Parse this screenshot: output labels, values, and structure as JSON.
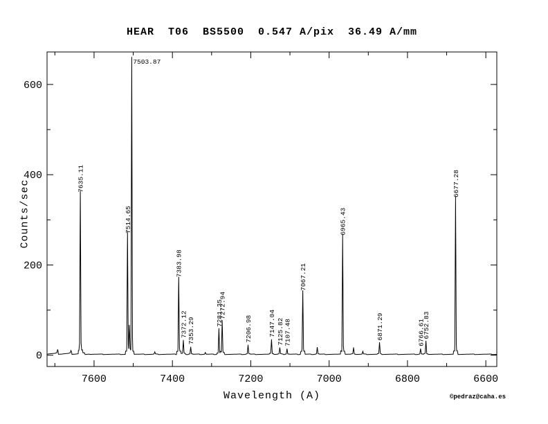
{
  "title": "HEAR  T06  BS5500  0.547 A/pix  36.49 A/mm",
  "credit": "©pedraz@caha.es",
  "chart_data": {
    "type": "line",
    "title": "HEAR  T06  BS5500  0.547 A/pix  36.49 A/mm",
    "xlabel": "Wavelength (A)",
    "ylabel": "Counts/sec",
    "xlim": [
      7720,
      6572
    ],
    "ylim": [
      -25,
      672
    ],
    "x_ticks_major": [
      7600,
      7400,
      7200,
      7000,
      6800,
      6600
    ],
    "x_ticks_minor": [
      7700,
      7500,
      7300,
      7100,
      6900,
      6700
    ],
    "y_ticks_major": [
      0,
      200,
      400,
      600
    ],
    "y_ticks_minor": [
      100,
      300,
      500
    ],
    "grid": false,
    "line_color": "#000000",
    "background": "#ffffff",
    "baseline_counts": 1.5,
    "labeled_peaks": [
      {
        "label": "7635.11",
        "wavelength": 7635.11,
        "counts": 353
      },
      {
        "label": "7514.65",
        "wavelength": 7514.65,
        "counts": 262
      },
      {
        "label": "7503.87",
        "wavelength": 7503.87,
        "counts": 652
      },
      {
        "label": "7383.98",
        "wavelength": 7383.98,
        "counts": 165
      },
      {
        "label": "7372.12",
        "wavelength": 7372.12,
        "counts": 30
      },
      {
        "label": "7353.29",
        "wavelength": 7353.29,
        "counts": 16
      },
      {
        "label": "7281.35",
        "wavelength": 7281.35,
        "counts": 55
      },
      {
        "label": "7272.94",
        "wavelength": 7272.94,
        "counts": 72
      },
      {
        "label": "7206.98",
        "wavelength": 7206.98,
        "counts": 20
      },
      {
        "label": "7147.04",
        "wavelength": 7147.04,
        "counts": 32
      },
      {
        "label": "7125.82",
        "wavelength": 7125.82,
        "counts": 14
      },
      {
        "label": "7107.48",
        "wavelength": 7107.48,
        "counts": 12
      },
      {
        "label": "7067.21",
        "wavelength": 7067.21,
        "counts": 135
      },
      {
        "label": "6965.43",
        "wavelength": 6965.43,
        "counts": 258
      },
      {
        "label": "6871.29",
        "wavelength": 6871.29,
        "counts": 25
      },
      {
        "label": "6766.61",
        "wavelength": 6766.61,
        "counts": 12
      },
      {
        "label": "6752.83",
        "wavelength": 6752.83,
        "counts": 28
      },
      {
        "label": "6677.28",
        "wavelength": 6677.28,
        "counts": 342
      }
    ],
    "unlabeled_peaks": [
      {
        "wavelength": 7693.0,
        "counts": 7
      },
      {
        "wavelength": 7659.0,
        "counts": 5
      },
      {
        "wavelength": 7510.0,
        "counts": 55
      },
      {
        "wavelength": 7445.0,
        "counts": 5
      },
      {
        "wavelength": 7316.0,
        "counts": 4
      },
      {
        "wavelength": 7030.25,
        "counts": 15
      },
      {
        "wavelength": 6937.66,
        "counts": 14
      },
      {
        "wavelength": 6914.0,
        "counts": 6
      }
    ]
  }
}
